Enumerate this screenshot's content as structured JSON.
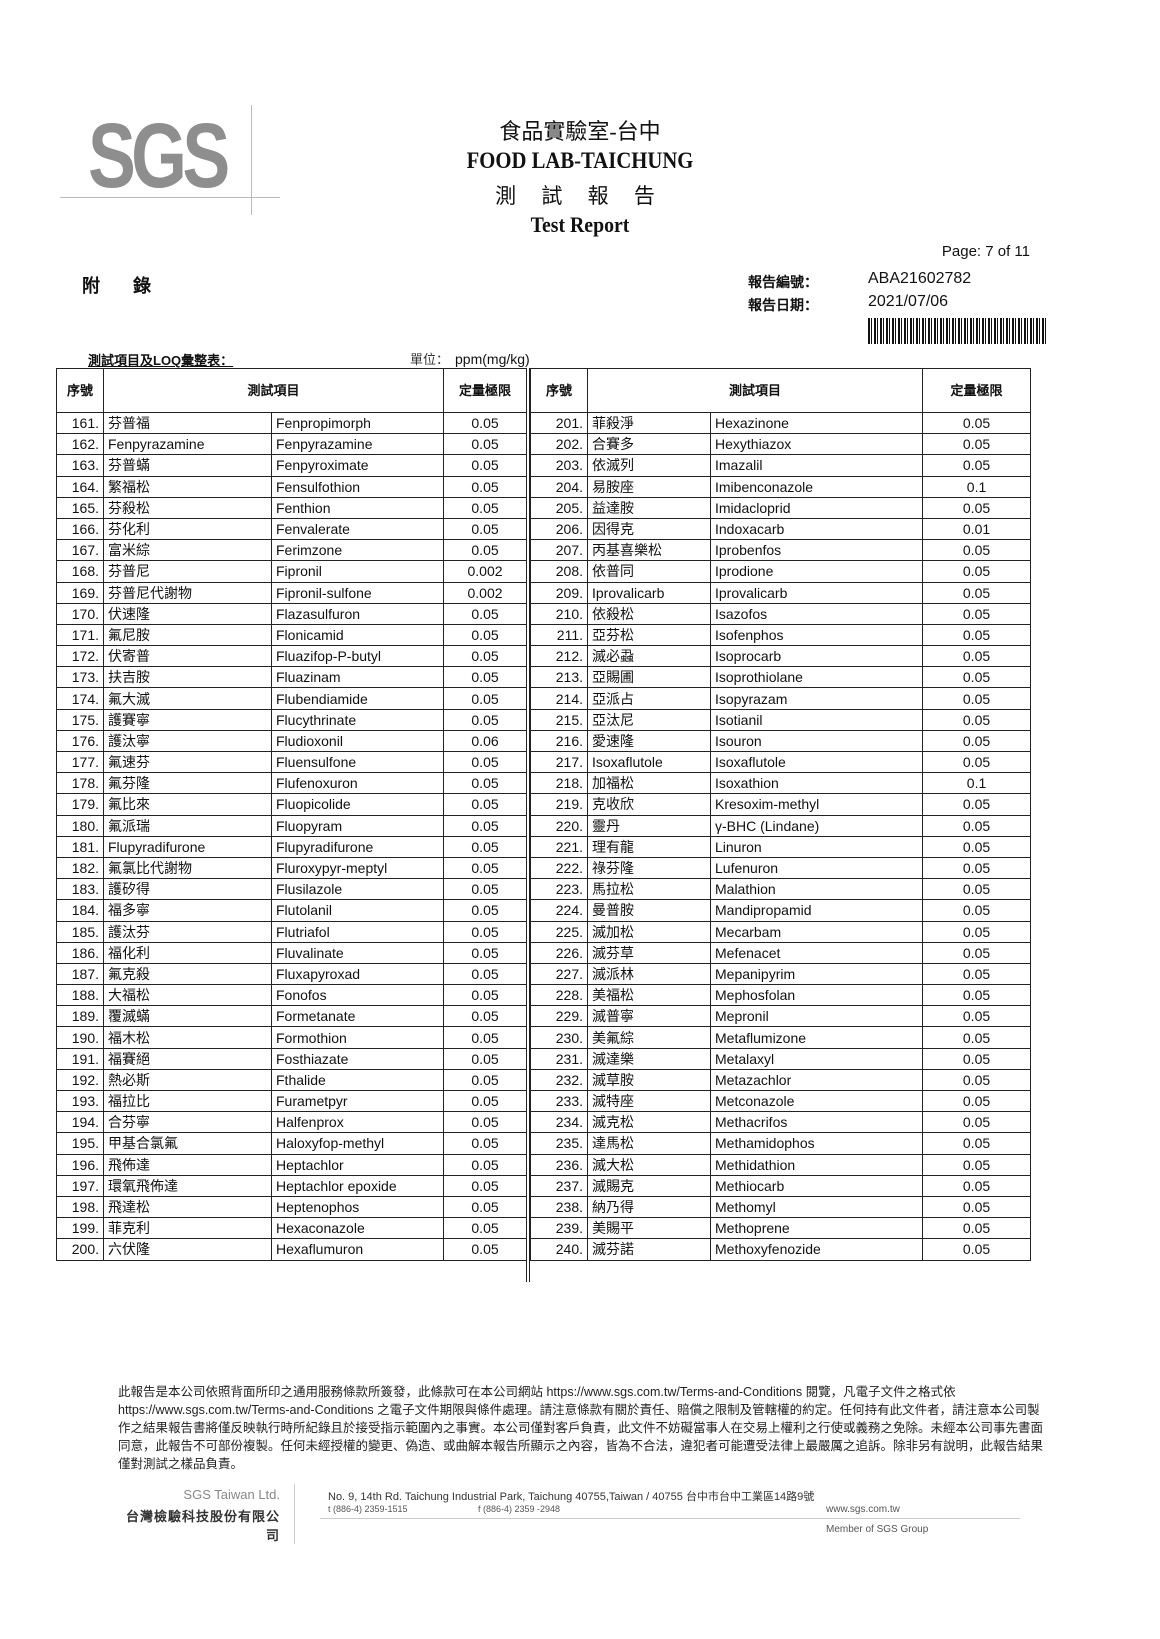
{
  "header": {
    "logo": "SGS",
    "title_zh": "食品實驗室-台中",
    "title_en": "FOOD LAB-TAICHUNG",
    "report_zh": "測 試 報 告",
    "report_en": "Test Report",
    "page": "Page: 7 of 11",
    "appendix": "附 錄",
    "report_no_label": "報告編號：",
    "report_no": "ABA21602782",
    "report_date_label": "報告日期：",
    "report_date": "2021/07/06"
  },
  "table": {
    "caption": "測試項目及LOQ彙整表：",
    "unit_label": "單位：",
    "unit": "ppm(mg/kg)",
    "headers": {
      "seq": "序號",
      "item": "測試項目",
      "loq": "定量極限"
    },
    "left_rows": [
      [
        "161.",
        "芬普福",
        "Fenpropimorph",
        "0.05"
      ],
      [
        "162.",
        "Fenpyrazamine",
        "Fenpyrazamine",
        "0.05"
      ],
      [
        "163.",
        "芬普蟎",
        "Fenpyroximate",
        "0.05"
      ],
      [
        "164.",
        "繁福松",
        "Fensulfothion",
        "0.05"
      ],
      [
        "165.",
        "芬殺松",
        "Fenthion",
        "0.05"
      ],
      [
        "166.",
        "芬化利",
        "Fenvalerate",
        "0.05"
      ],
      [
        "167.",
        "富米綜",
        "Ferimzone",
        "0.05"
      ],
      [
        "168.",
        "芬普尼",
        "Fipronil",
        "0.002"
      ],
      [
        "169.",
        "芬普尼代謝物",
        "Fipronil-sulfone",
        "0.002"
      ],
      [
        "170.",
        "伏速隆",
        "Flazasulfuron",
        "0.05"
      ],
      [
        "171.",
        "氟尼胺",
        "Flonicamid",
        "0.05"
      ],
      [
        "172.",
        "伏寄普",
        "Fluazifop-P-butyl",
        "0.05"
      ],
      [
        "173.",
        "扶吉胺",
        "Fluazinam",
        "0.05"
      ],
      [
        "174.",
        "氟大滅",
        "Flubendiamide",
        "0.05"
      ],
      [
        "175.",
        "護賽寧",
        "Flucythrinate",
        "0.05"
      ],
      [
        "176.",
        "護汰寧",
        "Fludioxonil",
        "0.06"
      ],
      [
        "177.",
        "氟速芬",
        "Fluensulfone",
        "0.05"
      ],
      [
        "178.",
        "氟芬隆",
        "Flufenoxuron",
        "0.05"
      ],
      [
        "179.",
        "氟比來",
        "Fluopicolide",
        "0.05"
      ],
      [
        "180.",
        "氟派瑞",
        "Fluopyram",
        "0.05"
      ],
      [
        "181.",
        "Flupyradifurone",
        "Flupyradifurone",
        "0.05"
      ],
      [
        "182.",
        "氟氯比代謝物",
        "Fluroxypyr-meptyl",
        "0.05"
      ],
      [
        "183.",
        "護矽得",
        "Flusilazole",
        "0.05"
      ],
      [
        "184.",
        "福多寧",
        "Flutolanil",
        "0.05"
      ],
      [
        "185.",
        "護汰芬",
        "Flutriafol",
        "0.05"
      ],
      [
        "186.",
        "福化利",
        "Fluvalinate",
        "0.05"
      ],
      [
        "187.",
        "氟克殺",
        "Fluxapyroxad",
        "0.05"
      ],
      [
        "188.",
        "大福松",
        "Fonofos",
        "0.05"
      ],
      [
        "189.",
        "覆滅蟎",
        "Formetanate",
        "0.05"
      ],
      [
        "190.",
        "福木松",
        "Formothion",
        "0.05"
      ],
      [
        "191.",
        "福賽絕",
        "Fosthiazate",
        "0.05"
      ],
      [
        "192.",
        "熱必斯",
        "Fthalide",
        "0.05"
      ],
      [
        "193.",
        "福拉比",
        "Furametpyr",
        "0.05"
      ],
      [
        "194.",
        "合芬寧",
        "Halfenprox",
        "0.05"
      ],
      [
        "195.",
        "甲基合氯氟",
        "Haloxyfop-methyl",
        "0.05"
      ],
      [
        "196.",
        "飛佈達",
        "Heptachlor",
        "0.05"
      ],
      [
        "197.",
        "環氧飛佈達",
        "Heptachlor epoxide",
        "0.05"
      ],
      [
        "198.",
        "飛達松",
        "Heptenophos",
        "0.05"
      ],
      [
        "199.",
        "菲克利",
        "Hexaconazole",
        "0.05"
      ],
      [
        "200.",
        "六伏隆",
        "Hexaflumuron",
        "0.05"
      ]
    ],
    "right_rows": [
      [
        "201.",
        "菲殺淨",
        "Hexazinone",
        "0.05"
      ],
      [
        "202.",
        "合賽多",
        "Hexythiazox",
        "0.05"
      ],
      [
        "203.",
        "依滅列",
        "Imazalil",
        "0.05"
      ],
      [
        "204.",
        "易胺座",
        "Imibenconazole",
        "0.1"
      ],
      [
        "205.",
        "益達胺",
        "Imidacloprid",
        "0.05"
      ],
      [
        "206.",
        "因得克",
        "Indoxacarb",
        "0.01"
      ],
      [
        "207.",
        "丙基喜樂松",
        "Iprobenfos",
        "0.05"
      ],
      [
        "208.",
        "依普同",
        "Iprodione",
        "0.05"
      ],
      [
        "209.",
        "Iprovalicarb",
        "Iprovalicarb",
        "0.05"
      ],
      [
        "210.",
        "依殺松",
        "Isazofos",
        "0.05"
      ],
      [
        "211.",
        "亞芬松",
        "Isofenphos",
        "0.05"
      ],
      [
        "212.",
        "滅必蝨",
        "Isoprocarb",
        "0.05"
      ],
      [
        "213.",
        "亞賜圃",
        "Isoprothiolane",
        "0.05"
      ],
      [
        "214.",
        "亞派占",
        "Isopyrazam",
        "0.05"
      ],
      [
        "215.",
        "亞汰尼",
        "Isotianil",
        "0.05"
      ],
      [
        "216.",
        "愛速隆",
        "Isouron",
        "0.05"
      ],
      [
        "217.",
        "Isoxaflutole",
        "Isoxaflutole",
        "0.05"
      ],
      [
        "218.",
        "加福松",
        "Isoxathion",
        "0.1"
      ],
      [
        "219.",
        "克收欣",
        "Kresoxim-methyl",
        "0.05"
      ],
      [
        "220.",
        "靈丹",
        "γ-BHC (Lindane)",
        "0.05"
      ],
      [
        "221.",
        "理有龍",
        "Linuron",
        "0.05"
      ],
      [
        "222.",
        "祿芬隆",
        "Lufenuron",
        "0.05"
      ],
      [
        "223.",
        "馬拉松",
        "Malathion",
        "0.05"
      ],
      [
        "224.",
        "曼普胺",
        "Mandipropamid",
        "0.05"
      ],
      [
        "225.",
        "滅加松",
        "Mecarbam",
        "0.05"
      ],
      [
        "226.",
        "滅芬草",
        "Mefenacet",
        "0.05"
      ],
      [
        "227.",
        "滅派林",
        "Mepanipyrim",
        "0.05"
      ],
      [
        "228.",
        "美福松",
        "Mephosfolan",
        "0.05"
      ],
      [
        "229.",
        "滅普寧",
        "Mepronil",
        "0.05"
      ],
      [
        "230.",
        "美氟綜",
        "Metaflumizone",
        "0.05"
      ],
      [
        "231.",
        "滅達樂",
        "Metalaxyl",
        "0.05"
      ],
      [
        "232.",
        "滅草胺",
        "Metazachlor",
        "0.05"
      ],
      [
        "233.",
        "滅特座",
        "Metconazole",
        "0.05"
      ],
      [
        "234.",
        "滅克松",
        "Methacrifos",
        "0.05"
      ],
      [
        "235.",
        "達馬松",
        "Methamidophos",
        "0.05"
      ],
      [
        "236.",
        "滅大松",
        "Methidathion",
        "0.05"
      ],
      [
        "237.",
        "滅賜克",
        "Methiocarb",
        "0.05"
      ],
      [
        "238.",
        "納乃得",
        "Methomyl",
        "0.05"
      ],
      [
        "239.",
        "美賜平",
        "Methoprene",
        "0.05"
      ],
      [
        "240.",
        "滅芬諾",
        "Methoxyfenozide",
        "0.05"
      ]
    ]
  },
  "footer": {
    "disclaimer_1": "此報告是本公司依照背面所印之通用服務條款所簽發，此條款可在本公司網站 ",
    "link_1": "https://www.sgs.com.tw/Terms-and-Conditions",
    "disclaimer_2": " 閱覽，凡電子文件之格式依 ",
    "link_2": "https://www.sgs.com.tw/Terms-and-Conditions",
    "disclaimer_3": " 之電子文件期限與條件處理。請注意條款有關於責任、賠償之限制及管轄權的約定。任何持有此文件者，請注意本公司製作之結果報告書將僅反映執行時所紀錄且於接受指示範圍內之事實。本公司僅對客戶負責，此文件不妨礙當事人在交易上權利之行使或義務之免除。未經本公司事先書面同意，此報告不可部份複製。任何未經授權的變更、偽造、或曲解本報告所顯示之內容，皆為不合法，違犯者可能遭受法律上最嚴厲之追訴。除非另有說明，此報告結果僅對測試之樣品負責。",
    "company_en": "SGS Taiwan Ltd.",
    "company_zh": "台灣檢驗科技股份有限公司",
    "address": "No. 9, 14th Rd. Taichung Industrial Park, Taichung 40755,Taiwan / 40755 台中市台中工業區14路9號",
    "tel": "t (886-4) 2359-1515",
    "fax": "f (886-4) 2359 -2948",
    "website": "www.sgs.com.tw",
    "member": "Member of SGS Group"
  }
}
